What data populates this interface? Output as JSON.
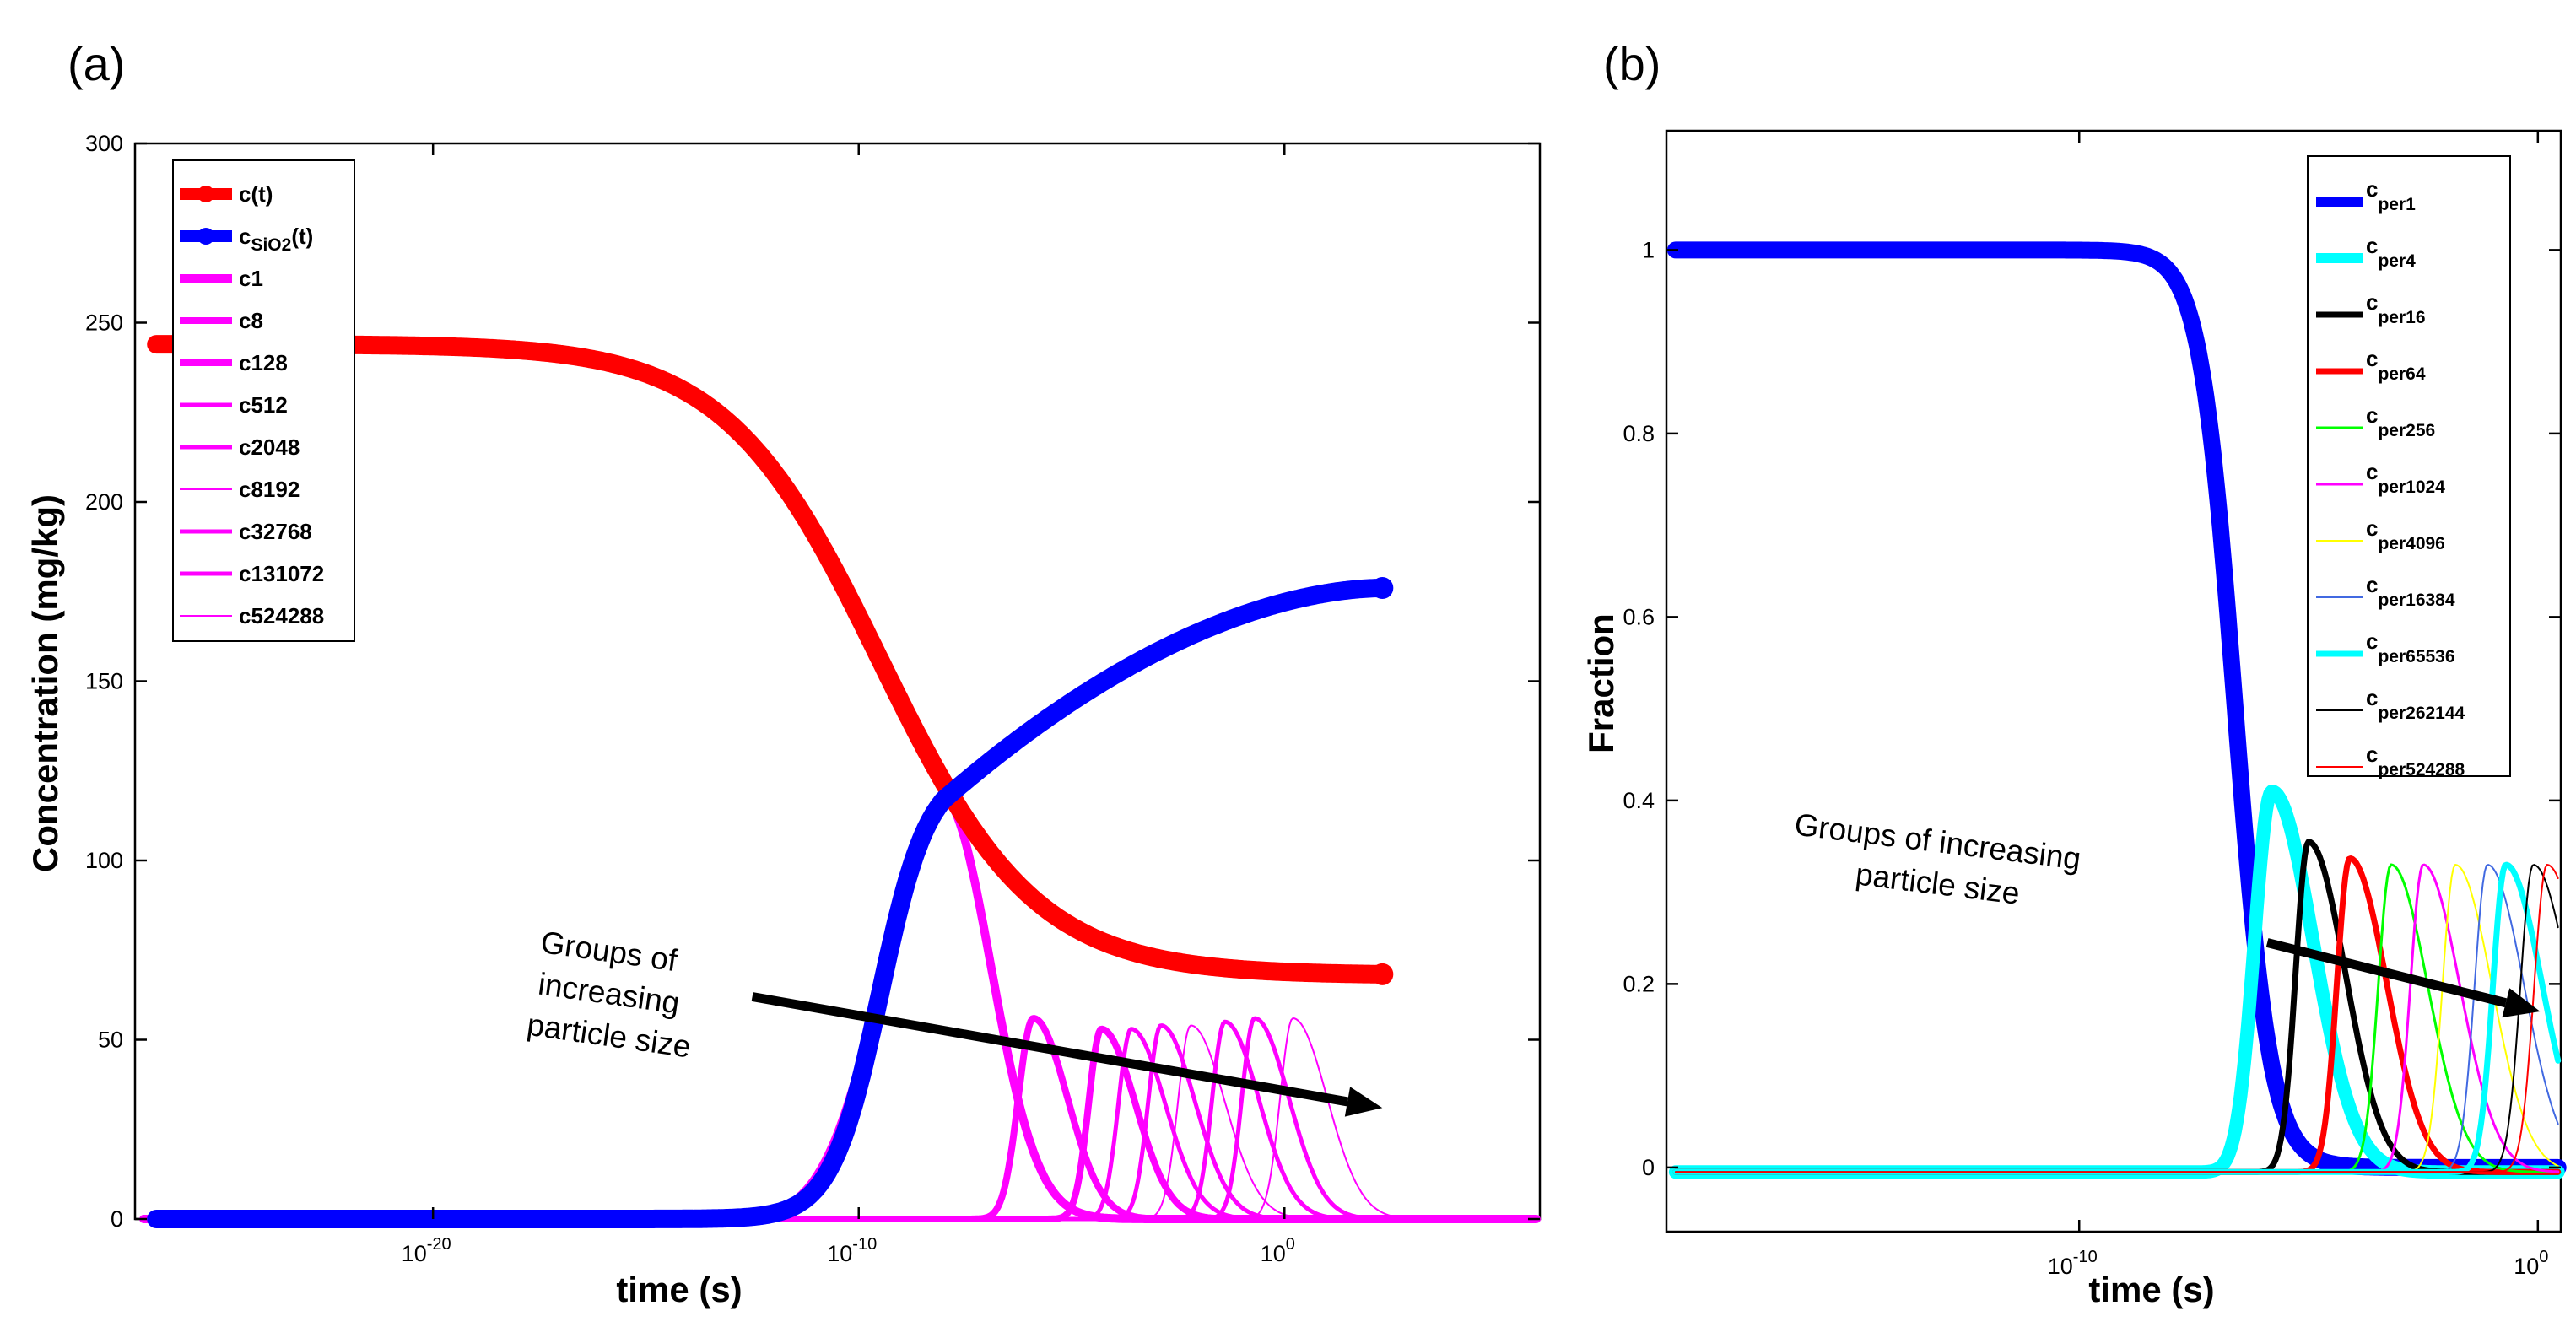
{
  "chart_data": [
    {
      "panel_label": "(a)",
      "type": "line",
      "xscale": "log",
      "xlabel": "time (s)",
      "ylabel": "Concentration (mg/kg)",
      "xlim_exponent": [
        -27,
        6
      ],
      "ylim": [
        0,
        300
      ],
      "x_ticks": [
        {
          "label": "10",
          "exp": "-20",
          "value_exp": -20
        },
        {
          "label": "10",
          "exp": "-10",
          "value_exp": -10
        },
        {
          "label": "10",
          "exp": "0",
          "value_exp": 0
        }
      ],
      "y_ticks": [
        "0",
        "50",
        "100",
        "150",
        "200",
        "250",
        "300"
      ],
      "legend_position": "top-left",
      "series": [
        {
          "name": "c(t)",
          "label_main": "c(t)",
          "label_sub": "",
          "label_tail": "",
          "color": "#ff0000",
          "width": 22,
          "marker": true,
          "kind": "sigmoid_down",
          "start_value": 244,
          "end_value": 68,
          "x_start_exp": -26.5,
          "x_end_exp": 2.3,
          "mid_exp": -9.5,
          "slope": 0.55
        },
        {
          "name": "cSiO2(t)",
          "label_main": "c",
          "label_sub": "SiO2",
          "label_tail": "(t)",
          "color": "#0000ff",
          "width": 22,
          "marker": true,
          "kind": "rise",
          "x_start_exp": -26.5,
          "x_end_exp": 2.3,
          "peak_exp": -8,
          "peak_value": 117,
          "end_value": 176
        },
        {
          "name": "c1",
          "label_main": "c1",
          "label_sub": "",
          "label_tail": "",
          "color": "#ff00ff",
          "width": 10,
          "peak_exp": -8,
          "peak_value": 117,
          "rise_sigma": 1.4,
          "fall_sigma": 1.1
        },
        {
          "name": "c8",
          "label_main": "c8",
          "label_sub": "",
          "label_tail": "",
          "color": "#ff00ff",
          "width": 8,
          "peak_exp": -5.9,
          "peak_value": 56,
          "rise_sigma": 0.35,
          "fall_sigma": 0.8
        },
        {
          "name": "c128",
          "label_main": "c128",
          "label_sub": "",
          "label_tail": "",
          "color": "#ff00ff",
          "width": 8,
          "peak_exp": -4.3,
          "peak_value": 53,
          "rise_sigma": 0.3,
          "fall_sigma": 0.8
        },
        {
          "name": "c512",
          "label_main": "c512",
          "label_sub": "",
          "label_tail": "",
          "color": "#ff00ff",
          "width": 5,
          "peak_exp": -3.6,
          "peak_value": 53,
          "rise_sigma": 0.3,
          "fall_sigma": 0.8
        },
        {
          "name": "c2048",
          "label_main": "c2048",
          "label_sub": "",
          "label_tail": "",
          "color": "#ff00ff",
          "width": 5,
          "peak_exp": -2.9,
          "peak_value": 54,
          "rise_sigma": 0.3,
          "fall_sigma": 0.8
        },
        {
          "name": "c8192",
          "label_main": "c8192",
          "label_sub": "",
          "label_tail": "",
          "color": "#ff00ff",
          "width": 2,
          "peak_exp": -2.2,
          "peak_value": 54,
          "rise_sigma": 0.3,
          "fall_sigma": 0.8
        },
        {
          "name": "c32768",
          "label_main": "c32768",
          "label_sub": "",
          "label_tail": "",
          "color": "#ff00ff",
          "width": 5,
          "peak_exp": -1.4,
          "peak_value": 55,
          "rise_sigma": 0.3,
          "fall_sigma": 0.8
        },
        {
          "name": "c131072",
          "label_main": "c131072",
          "label_sub": "",
          "label_tail": "",
          "color": "#ff00ff",
          "width": 5,
          "peak_exp": -0.7,
          "peak_value": 56,
          "rise_sigma": 0.3,
          "fall_sigma": 0.8
        },
        {
          "name": "c524288",
          "label_main": "c524288",
          "label_sub": "",
          "label_tail": "",
          "color": "#ff00ff",
          "width": 2,
          "peak_exp": 0.2,
          "peak_value": 56,
          "rise_sigma": 0.3,
          "fall_sigma": 0.8
        }
      ],
      "annotation": {
        "lines": [
          "Groups of",
          "increasing",
          "particle size"
        ],
        "arrow_from": [
          -12.5,
          62
        ],
        "arrow_to": [
          2.3,
          31
        ]
      }
    },
    {
      "panel_label": "(b)",
      "type": "line",
      "xscale": "log",
      "xlabel": "time (s)",
      "ylabel": "Fraction",
      "xlim_exponent": [
        -19,
        0.5
      ],
      "ylim": [
        -0.07,
        1.13
      ],
      "x_ticks": [
        {
          "label": "10",
          "exp": "-10",
          "value_exp": -10
        },
        {
          "label": "10",
          "exp": "0",
          "value_exp": 0
        }
      ],
      "y_ticks": [
        "0",
        "0.2",
        "0.4",
        "0.6",
        "0.8",
        "1"
      ],
      "y_tick_values": [
        0,
        0.2,
        0.4,
        0.6,
        0.8,
        1
      ],
      "legend_position": "top-right",
      "series": [
        {
          "name": "cper1",
          "sub": "per1",
          "color": "#0000ff",
          "width": 20,
          "kind": "sigmoid_down",
          "start_value": 1,
          "end_value": 0,
          "mid_exp": -6.6,
          "slope": 2.6
        },
        {
          "name": "cper4",
          "sub": "per4",
          "color": "#00ffff",
          "width": 16,
          "peak_exp": -5.8,
          "peak_value": 0.41,
          "rise_sigma": 0.38,
          "fall_sigma": 0.9
        },
        {
          "name": "cper16",
          "sub": "per16",
          "color": "#000000",
          "width": 7,
          "peak_exp": -5.0,
          "peak_value": 0.355,
          "rise_sigma": 0.28,
          "fall_sigma": 0.8
        },
        {
          "name": "cper64",
          "sub": "per64",
          "color": "#ff0000",
          "width": 7,
          "peak_exp": -4.1,
          "peak_value": 0.337,
          "rise_sigma": 0.28,
          "fall_sigma": 0.8
        },
        {
          "name": "cper256",
          "sub": "per256",
          "color": "#00ff00",
          "width": 3,
          "peak_exp": -3.2,
          "peak_value": 0.33,
          "rise_sigma": 0.28,
          "fall_sigma": 0.8
        },
        {
          "name": "cper1024",
          "sub": "per1024",
          "color": "#ff00ff",
          "width": 3,
          "peak_exp": -2.5,
          "peak_value": 0.33,
          "rise_sigma": 0.28,
          "fall_sigma": 0.8
        },
        {
          "name": "cper4096",
          "sub": "per4096",
          "color": "#ffff00",
          "width": 2,
          "peak_exp": -1.8,
          "peak_value": 0.33,
          "rise_sigma": 0.28,
          "fall_sigma": 0.8
        },
        {
          "name": "cper16384",
          "sub": "per16384",
          "color": "#4169e1",
          "width": 2,
          "peak_exp": -1.1,
          "peak_value": 0.33,
          "rise_sigma": 0.28,
          "fall_sigma": 0.8
        },
        {
          "name": "cper65536",
          "sub": "per65536",
          "color": "#00ffff",
          "width": 7,
          "peak_exp": -0.7,
          "peak_value": 0.33,
          "rise_sigma": 0.28,
          "fall_sigma": 0.8
        },
        {
          "name": "cper262144",
          "sub": "per262144",
          "color": "#000000",
          "width": 2,
          "peak_exp": -0.1,
          "peak_value": 0.33,
          "rise_sigma": 0.28,
          "fall_sigma": 0.8
        },
        {
          "name": "cper524288",
          "sub": "per524288",
          "color": "#ff0000",
          "width": 2,
          "peak_exp": 0.2,
          "peak_value": 0.33,
          "rise_sigma": 0.28,
          "fall_sigma": 0.8
        }
      ],
      "annotation": {
        "lines": [
          "Groups of increasing",
          "particle size"
        ],
        "arrow_from": [
          -5.9,
          0.245
        ],
        "arrow_to": [
          0.05,
          0.17
        ]
      }
    }
  ]
}
